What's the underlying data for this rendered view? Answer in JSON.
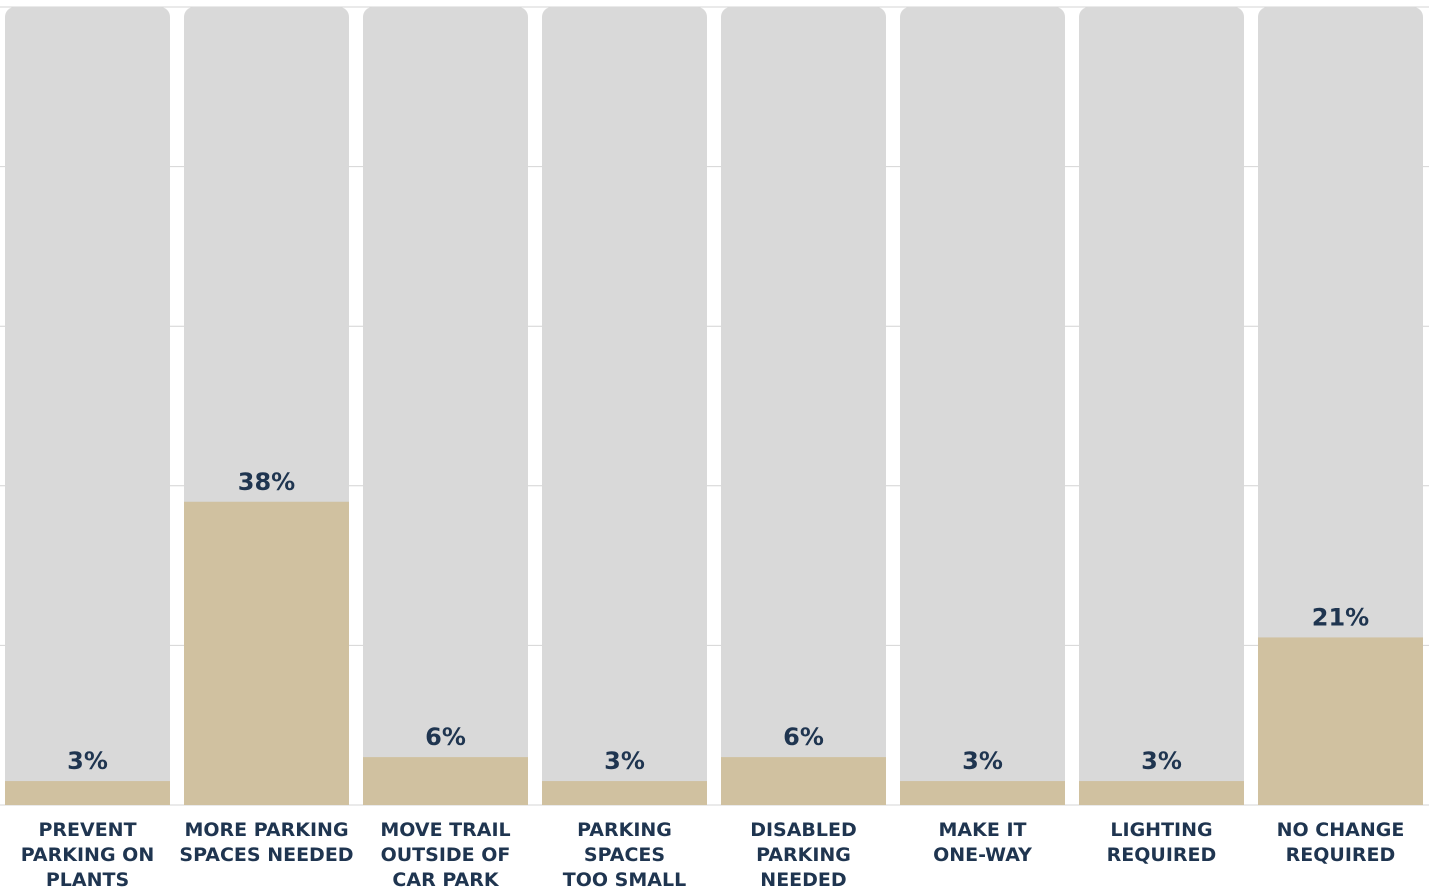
{
  "chart_data": {
    "type": "bar",
    "title": "",
    "xlabel": "",
    "ylabel": "",
    "ylim": [
      0,
      100
    ],
    "grid": true,
    "categories": [
      "PREVENT PARKING ON PLANTS",
      "MORE PARKING SPACES NEEDED",
      "MOVE TRAIL OUTSIDE OF CAR PARK",
      "PARKING SPACES TOO SMALL",
      "DISABLED PARKING NEEDED",
      "MAKE IT ONE-WAY",
      "LIGHTING REQUIRED",
      "NO CHANGE REQUIRED"
    ],
    "category_label_lines": [
      [
        "PREVENT",
        "PARKING ON",
        "PLANTS"
      ],
      [
        "MORE PARKING",
        "SPACES NEEDED"
      ],
      [
        "MOVE TRAIL",
        "OUTSIDE OF",
        "CAR PARK"
      ],
      [
        "PARKING",
        "SPACES",
        "TOO SMALL"
      ],
      [
        "DISABLED",
        "PARKING",
        "NEEDED"
      ],
      [
        "MAKE IT",
        "ONE-WAY"
      ],
      [
        "LIGHTING",
        "REQUIRED"
      ],
      [
        "NO CHANGE",
        "REQUIRED"
      ]
    ],
    "values": [
      3,
      38,
      6,
      3,
      6,
      3,
      3,
      21
    ],
    "value_labels": [
      "3%",
      "38%",
      "6%",
      "3%",
      "6%",
      "3%",
      "3%",
      "21%"
    ],
    "colors": {
      "track": "#d9d9d9",
      "bar": "#d0c1a0",
      "text": "#1f3550",
      "grid": "#d4d4d4"
    }
  }
}
